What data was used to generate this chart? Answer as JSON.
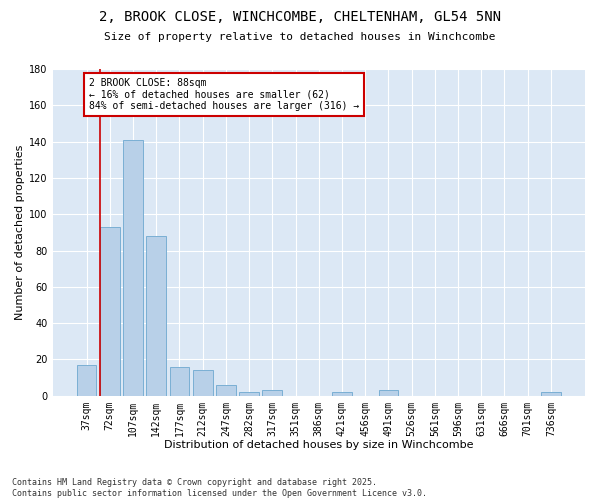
{
  "title_line1": "2, BROOK CLOSE, WINCHCOMBE, CHELTENHAM, GL54 5NN",
  "title_line2": "Size of property relative to detached houses in Winchcombe",
  "xlabel": "Distribution of detached houses by size in Winchcombe",
  "ylabel": "Number of detached properties",
  "categories": [
    "37sqm",
    "72sqm",
    "107sqm",
    "142sqm",
    "177sqm",
    "212sqm",
    "247sqm",
    "282sqm",
    "317sqm",
    "351sqm",
    "386sqm",
    "421sqm",
    "456sqm",
    "491sqm",
    "526sqm",
    "561sqm",
    "596sqm",
    "631sqm",
    "666sqm",
    "701sqm",
    "736sqm"
  ],
  "values": [
    17,
    93,
    141,
    88,
    16,
    14,
    6,
    2,
    3,
    0,
    0,
    2,
    0,
    3,
    0,
    0,
    0,
    0,
    0,
    0,
    2
  ],
  "bar_color": "#b8d0e8",
  "bar_edge_color": "#7aafd4",
  "plot_background_color": "#dce8f5",
  "figure_background_color": "#ffffff",
  "grid_color": "#ffffff",
  "red_line_index": 1,
  "red_line_color": "#cc0000",
  "annotation_title": "2 BROOK CLOSE: 88sqm",
  "annotation_line1": "← 16% of detached houses are smaller (62)",
  "annotation_line2": "84% of semi-detached houses are larger (316) →",
  "annotation_box_facecolor": "#ffffff",
  "annotation_border_color": "#cc0000",
  "footnote_line1": "Contains HM Land Registry data © Crown copyright and database right 2025.",
  "footnote_line2": "Contains public sector information licensed under the Open Government Licence v3.0.",
  "ylim": [
    0,
    180
  ],
  "yticks": [
    0,
    20,
    40,
    60,
    80,
    100,
    120,
    140,
    160,
    180
  ],
  "title_fontsize": 10,
  "subtitle_fontsize": 8,
  "tick_fontsize": 7,
  "ylabel_fontsize": 8,
  "xlabel_fontsize": 8,
  "annotation_fontsize": 7,
  "footnote_fontsize": 6
}
